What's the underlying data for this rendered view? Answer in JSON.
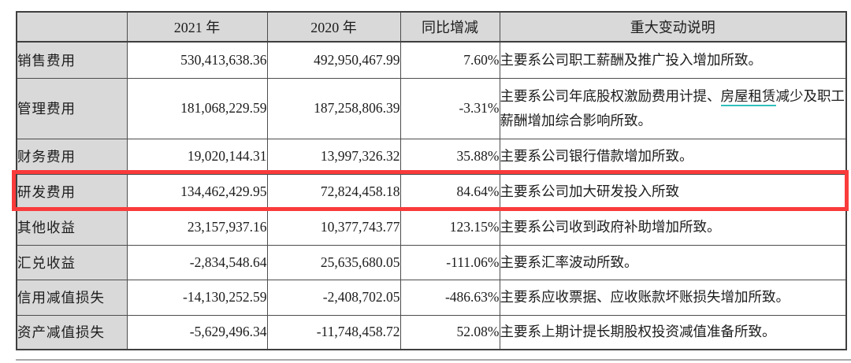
{
  "page": {
    "background": "#ffffff",
    "header_fill": "#d9d9d9",
    "label_column_fill": "#d9d9d9",
    "border_color": "#4d4d4d",
    "highlight_color": "#f93b3b",
    "underline_color": "#30bfbc"
  },
  "table": {
    "headers": {
      "col0": "",
      "col1": "2021 年",
      "col2": "2020 年",
      "col3": "同比增减",
      "col4": "重大变动说明"
    },
    "rows": [
      {
        "label": "销售费用",
        "y2021": "530,413,638.36",
        "y2020": "492,950,467.99",
        "change": "7.60%",
        "note": "主要系公司职工薪酬及推广投入增加所致。"
      },
      {
        "label": "管理费用",
        "y2021": "181,068,229.59",
        "y2020": "187,258,806.39",
        "change": "-3.31%",
        "note_prefix": "主要系公司年底股权激励费用计提、",
        "note_underlined": "房屋租赁",
        "note_suffix": "减少及职工薪酬增加综合影响所致。"
      },
      {
        "label": "财务费用",
        "y2021": "19,020,144.31",
        "y2020": "13,997,326.32",
        "change": "35.88%",
        "note": "主要系公司银行借款增加所致。"
      },
      {
        "label": "研发费用",
        "y2021": "134,462,429.95",
        "y2020": "72,824,458.18",
        "change": "84.64%",
        "note": "主要系公司加大研发投入所致",
        "highlighted": true
      },
      {
        "label": "其他收益",
        "y2021": "23,157,937.16",
        "y2020": "10,377,743.77",
        "change": "123.15%",
        "note": "主要系公司收到政府补助增加所致。"
      },
      {
        "label": "汇兑收益",
        "y2021": "-2,834,548.64",
        "y2020": "25,635,680.05",
        "change": "-111.06%",
        "note": "主要系汇率波动所致。"
      },
      {
        "label": "信用减值损失",
        "y2021": "-14,130,252.59",
        "y2020": "-2,408,702.05",
        "change": "-486.63%",
        "note": "主要系应收票据、应收账款坏账损失增加所致。"
      },
      {
        "label": "资产减值损失",
        "y2021": "-5,629,496.34",
        "y2020": "-11,748,458.72",
        "change": "52.08%",
        "note": "主要系上期计提长期股权投资减值准备所致。"
      }
    ]
  },
  "annotation": {
    "type": "red-highlight-box",
    "target_row": "研发费用"
  }
}
